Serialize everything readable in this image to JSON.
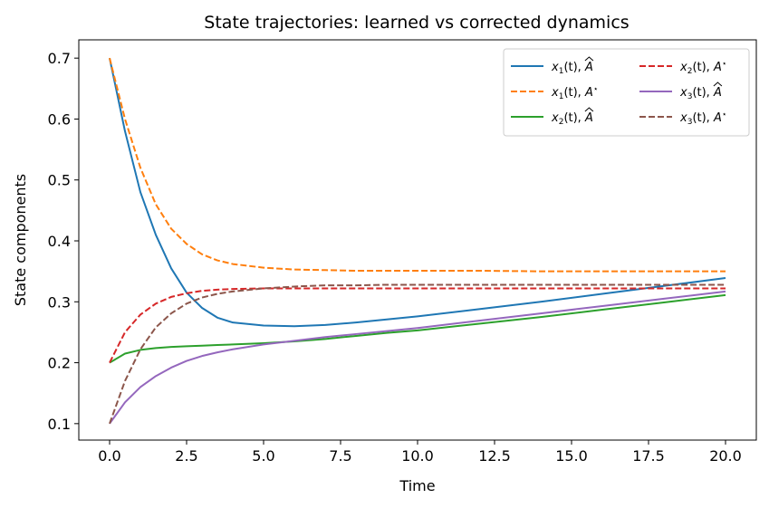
{
  "chart_data": {
    "type": "line",
    "title": "State trajectories: learned vs corrected dynamics",
    "xlabel": "Time",
    "ylabel": "State components",
    "xlim": [
      -1.0,
      21.0
    ],
    "ylim": [
      0.073,
      0.73
    ],
    "xticks": [
      0.0,
      2.5,
      5.0,
      7.5,
      10.0,
      12.5,
      15.0,
      17.5,
      20.0
    ],
    "xtick_labels": [
      "0.0",
      "2.5",
      "5.0",
      "7.5",
      "10.0",
      "12.5",
      "15.0",
      "17.5",
      "20.0"
    ],
    "yticks": [
      0.1,
      0.2,
      0.3,
      0.4,
      0.5,
      0.6,
      0.7
    ],
    "ytick_labels": [
      "0.1",
      "0.2",
      "0.3",
      "0.4",
      "0.5",
      "0.6",
      "0.7"
    ],
    "grid": false,
    "legend_position": "top-right",
    "legend_columns": 2,
    "x": [
      0,
      0.5,
      1,
      1.5,
      2,
      2.5,
      3,
      3.5,
      4,
      5,
      6,
      7,
      8,
      9,
      10,
      12,
      14,
      16,
      18,
      20
    ],
    "series": [
      {
        "name": "x1_hat",
        "color": "#1f77b4",
        "dash": "solid",
        "values": [
          0.7,
          0.58,
          0.48,
          0.41,
          0.355,
          0.315,
          0.29,
          0.274,
          0.266,
          0.261,
          0.26,
          0.262,
          0.266,
          0.271,
          0.276,
          0.288,
          0.3,
          0.313,
          0.326,
          0.339
        ]
      },
      {
        "name": "x1_star",
        "color": "#ff7f0e",
        "dash": "dashed",
        "values": [
          0.7,
          0.6,
          0.52,
          0.46,
          0.42,
          0.395,
          0.378,
          0.368,
          0.362,
          0.356,
          0.353,
          0.352,
          0.351,
          0.351,
          0.351,
          0.351,
          0.35,
          0.35,
          0.35,
          0.35
        ]
      },
      {
        "name": "x2_hat",
        "color": "#2ca02c",
        "dash": "solid",
        "values": [
          0.2,
          0.215,
          0.221,
          0.224,
          0.226,
          0.227,
          0.228,
          0.229,
          0.23,
          0.232,
          0.235,
          0.239,
          0.244,
          0.249,
          0.253,
          0.264,
          0.275,
          0.287,
          0.299,
          0.311
        ]
      },
      {
        "name": "x2_star",
        "color": "#d62728",
        "dash": "dashed",
        "values": [
          0.2,
          0.25,
          0.279,
          0.297,
          0.308,
          0.314,
          0.318,
          0.32,
          0.321,
          0.322,
          0.322,
          0.322,
          0.322,
          0.322,
          0.322,
          0.322,
          0.322,
          0.322,
          0.322,
          0.322
        ]
      },
      {
        "name": "x3_hat",
        "color": "#9467bd",
        "dash": "solid",
        "values": [
          0.1,
          0.135,
          0.16,
          0.178,
          0.192,
          0.203,
          0.211,
          0.217,
          0.222,
          0.23,
          0.236,
          0.242,
          0.247,
          0.252,
          0.257,
          0.269,
          0.281,
          0.293,
          0.305,
          0.317
        ]
      },
      {
        "name": "x3_star",
        "color": "#8c564b",
        "dash": "dashed",
        "values": [
          0.1,
          0.17,
          0.222,
          0.258,
          0.281,
          0.297,
          0.307,
          0.313,
          0.317,
          0.322,
          0.325,
          0.327,
          0.327,
          0.328,
          0.328,
          0.328,
          0.328,
          0.328,
          0.328,
          0.328
        ]
      }
    ],
    "legend": [
      {
        "series": "x1_hat",
        "x_label": "x",
        "sub": "1",
        "t": "(t), ",
        "mat": "A",
        "mark": "hat"
      },
      {
        "series": "x1_star",
        "x_label": "x",
        "sub": "1",
        "t": "(t), ",
        "mat": "A",
        "mark": "star"
      },
      {
        "series": "x2_hat",
        "x_label": "x",
        "sub": "2",
        "t": "(t), ",
        "mat": "A",
        "mark": "hat"
      },
      {
        "series": "x2_star",
        "x_label": "x",
        "sub": "2",
        "t": "(t), ",
        "mat": "A",
        "mark": "star"
      },
      {
        "series": "x3_hat",
        "x_label": "x",
        "sub": "3",
        "t": "(t), ",
        "mat": "A",
        "mark": "hat"
      },
      {
        "series": "x3_star",
        "x_label": "x",
        "sub": "3",
        "t": "(t), ",
        "mat": "A",
        "mark": "star"
      }
    ]
  }
}
